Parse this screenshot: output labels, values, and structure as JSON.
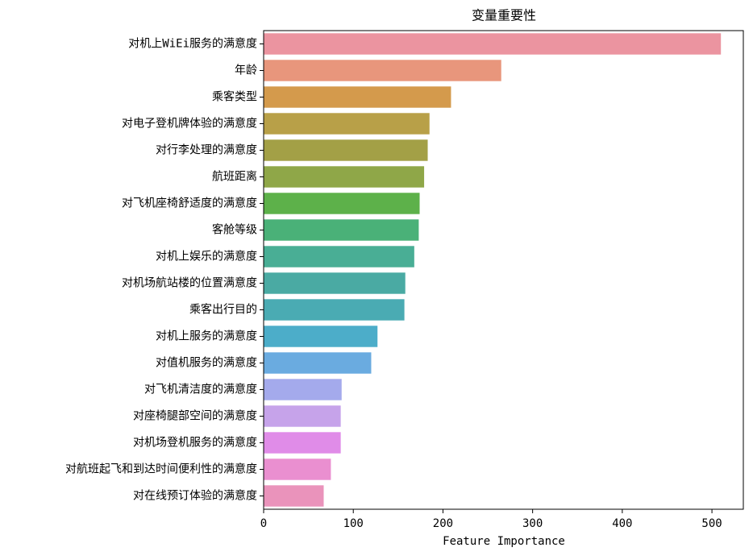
{
  "chart_data": {
    "type": "barh",
    "title": "变量重要性",
    "x_label": "Feature Importance",
    "categories": [
      "对机上WiEi服务的满意度",
      "年龄",
      "乘客类型",
      "对电子登机牌体验的满意度",
      "对行李处理的满意度",
      "航班距离",
      "对飞机座椅舒适度的满意度",
      "客舱等级",
      "对机上娱乐的满意度",
      "对机场航站楼的位置满意度",
      "乘客出行目的",
      "对机上服务的满意度",
      "对值机服务的满意度",
      "对飞机清洁度的满意度",
      "对座椅腿部空间的满意度",
      "对机场登机服务的满意度",
      "对航班起飞和到达时间便利性的满意度",
      "对在线预订体验的满意度"
    ],
    "values": [
      510,
      265,
      209,
      185,
      183,
      179,
      174,
      173,
      168,
      158,
      157,
      127,
      120,
      87,
      86,
      86,
      75,
      67
    ],
    "colors": [
      "#eb94a0",
      "#e8967c",
      "#d49a4c",
      "#b8a048",
      "#a3a046",
      "#8fa748",
      "#5db14a",
      "#4ab178",
      "#49ae95",
      "#4aaaa3",
      "#4aabb3",
      "#4cadc9",
      "#6aabe0",
      "#a4aaec",
      "#c6a3ea",
      "#e08ce8",
      "#ea8fd0",
      "#ea93bb"
    ],
    "xlim": [
      0,
      535
    ],
    "xticks": [
      0,
      100,
      200,
      300,
      400,
      500
    ]
  }
}
